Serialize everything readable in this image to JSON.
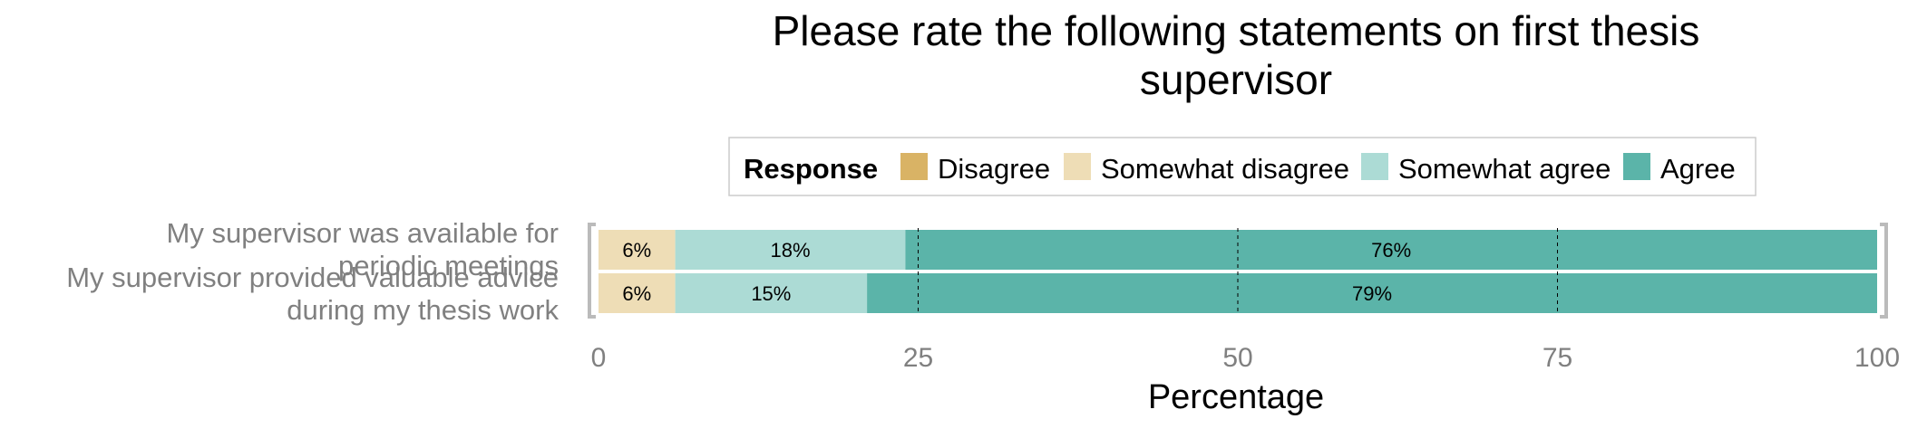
{
  "chart_data": {
    "type": "bar",
    "orientation": "horizontal",
    "stacked": true,
    "title": "Please rate the following statements on first thesis supervisor",
    "title_lines": [
      "Please rate the following statements on first thesis",
      "supervisor"
    ],
    "xlabel": "Percentage",
    "ylabel": "",
    "xlim": [
      0,
      100
    ],
    "xticks": [
      0,
      25,
      50,
      75,
      100
    ],
    "x_tick_labels": [
      "0",
      "25",
      "50",
      "75",
      "100"
    ],
    "grid": true,
    "legend": {
      "title": "Response",
      "placement": "top",
      "entries": [
        "Disagree",
        "Somewhat disagree",
        "Somewhat agree",
        "Agree"
      ]
    },
    "colors": {
      "Disagree": "#D9B365",
      "Somewhat disagree": "#EEDDB6",
      "Somewhat agree": "#ACDBD5",
      "Agree": "#5BB4A9"
    },
    "categories": [
      "My supervisor was available for periodic meetings",
      "My supervisor provided valuable advice during my thesis work"
    ],
    "category_label_lines": [
      [
        "My supervisor was available for",
        "periodic meetings"
      ],
      [
        "My supervisor provided valuable advice",
        "during my thesis work"
      ]
    ],
    "series": [
      {
        "name": "Disagree",
        "values": [
          0,
          0
        ],
        "labels": [
          "",
          ""
        ]
      },
      {
        "name": "Somewhat disagree",
        "values": [
          6,
          6
        ],
        "labels": [
          "6%",
          "6%"
        ]
      },
      {
        "name": "Somewhat agree",
        "values": [
          18,
          15
        ],
        "labels": [
          "18%",
          "15%"
        ]
      },
      {
        "name": "Agree",
        "values": [
          76,
          79
        ],
        "labels": [
          "76%",
          "79%"
        ]
      }
    ]
  }
}
